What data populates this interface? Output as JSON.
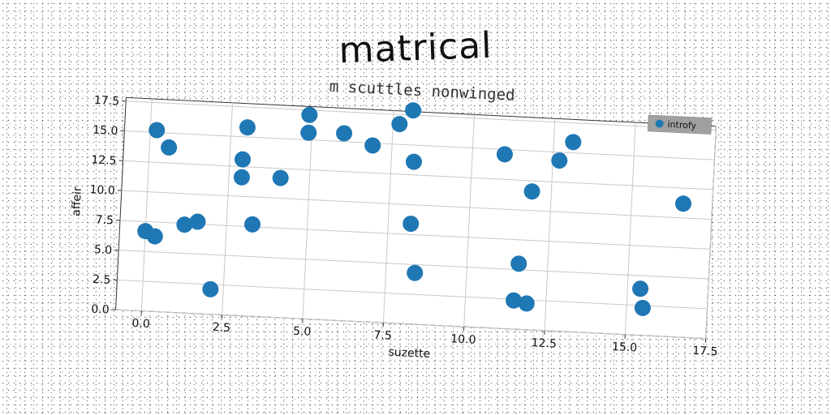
{
  "title": "matrical",
  "chart_data": {
    "type": "scatter",
    "title": "m scuttles nonwinged",
    "xlabel": "suzette",
    "ylabel": "affeir",
    "xlim": [
      -0.8,
      17.5
    ],
    "ylim": [
      0,
      17.8
    ],
    "xticks": [
      "0.0",
      "2.5",
      "5.0",
      "7.5",
      "10.0",
      "12.5",
      "15.0",
      "17.5"
    ],
    "yticks": [
      "0.0",
      "2.5",
      "5.0",
      "7.5",
      "10.0",
      "12.5",
      "15.0",
      "17.5"
    ],
    "grid": true,
    "legend_position": "top-right",
    "series": [
      {
        "name": "introfy",
        "color": "#1f77b4",
        "points": [
          {
            "x": 0.2,
            "y": 15.2
          },
          {
            "x": 0.6,
            "y": 13.8
          },
          {
            "x": 0.0,
            "y": 6.7
          },
          {
            "x": 0.3,
            "y": 6.3
          },
          {
            "x": 1.2,
            "y": 7.4
          },
          {
            "x": 1.6,
            "y": 7.7
          },
          {
            "x": 2.1,
            "y": 2.1
          },
          {
            "x": 3.0,
            "y": 15.8
          },
          {
            "x": 2.9,
            "y": 13.1
          },
          {
            "x": 2.9,
            "y": 11.6
          },
          {
            "x": 3.3,
            "y": 7.7
          },
          {
            "x": 4.1,
            "y": 11.7
          },
          {
            "x": 4.9,
            "y": 17.1
          },
          {
            "x": 4.9,
            "y": 15.6
          },
          {
            "x": 6.0,
            "y": 15.7
          },
          {
            "x": 6.9,
            "y": 14.8
          },
          {
            "x": 7.7,
            "y": 16.7
          },
          {
            "x": 8.1,
            "y": 17.9
          },
          {
            "x": 8.2,
            "y": 13.6
          },
          {
            "x": 8.2,
            "y": 8.4
          },
          {
            "x": 8.4,
            "y": 4.3
          },
          {
            "x": 11.0,
            "y": 14.6
          },
          {
            "x": 11.5,
            "y": 2.4
          },
          {
            "x": 11.6,
            "y": 5.5
          },
          {
            "x": 11.9,
            "y": 2.2
          },
          {
            "x": 11.9,
            "y": 11.6
          },
          {
            "x": 12.7,
            "y": 14.3
          },
          {
            "x": 13.1,
            "y": 15.9
          },
          {
            "x": 15.4,
            "y": 3.9
          },
          {
            "x": 15.5,
            "y": 2.3
          },
          {
            "x": 16.6,
            "y": 11.2
          }
        ]
      }
    ]
  }
}
